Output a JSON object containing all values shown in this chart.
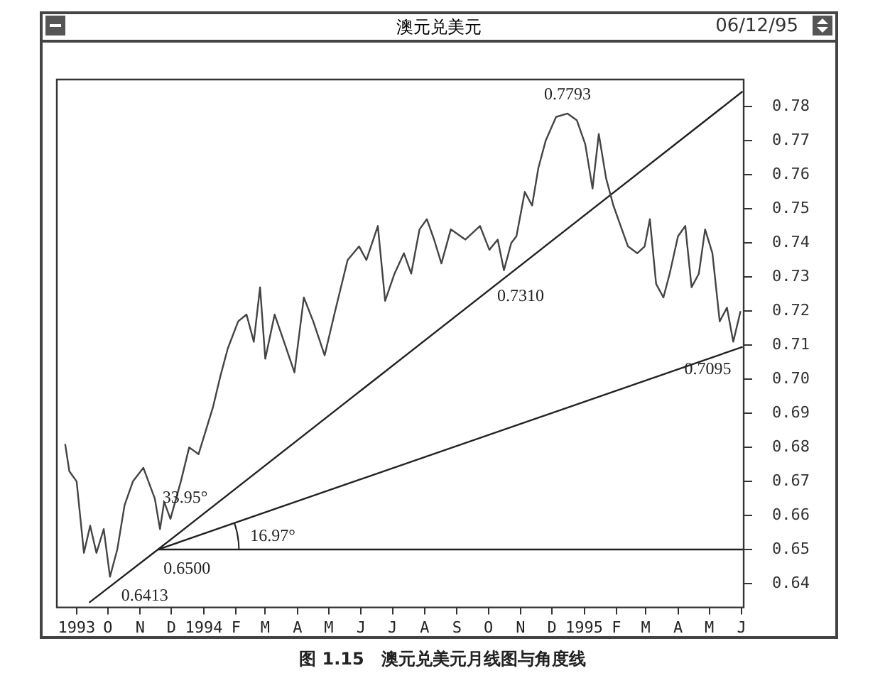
{
  "chart_data": {
    "type": "line",
    "title": "澳元兑美元",
    "subtitle": "06/12/95",
    "x": [
      "1993-08-21",
      "1993-08-25",
      "1993-09-01",
      "1993-09-08",
      "1993-09-14",
      "1993-09-20",
      "1993-09-27",
      "1993-10-03",
      "1993-10-10",
      "1993-10-17",
      "1993-10-25",
      "1993-11-04",
      "1993-11-15",
      "1993-11-20",
      "1993-11-24",
      "1993-11-30",
      "1993-12-10",
      "1993-12-18",
      "1993-12-27",
      "1994-01-04",
      "1994-01-10",
      "1994-01-17",
      "1994-01-24",
      "1994-02-03",
      "1994-02-11",
      "1994-02-18",
      "1994-02-24",
      "1994-03-01",
      "1994-03-10",
      "1994-03-19",
      "1994-03-29",
      "1994-04-07",
      "1994-04-16",
      "1994-04-27",
      "1994-05-07",
      "1994-05-19",
      "1994-05-30",
      "1994-06-06",
      "1994-06-17",
      "1994-06-24",
      "1994-07-03",
      "1994-07-12",
      "1994-07-19",
      "1994-07-27",
      "1994-08-03",
      "1994-08-10",
      "1994-08-17",
      "1994-08-26",
      "1994-09-09",
      "1994-09-23",
      "1994-10-02",
      "1994-10-10",
      "1994-10-16",
      "1994-10-23",
      "1994-10-28",
      "1994-11-05",
      "1994-11-12",
      "1994-11-18",
      "1994-11-25",
      "1994-12-05",
      "1994-12-16",
      "1994-12-25",
      "1995-01-02",
      "1995-01-09",
      "1995-01-15",
      "1995-01-22",
      "1995-01-29",
      "1995-02-05",
      "1995-02-12",
      "1995-02-21",
      "1995-02-28",
      "1995-03-05",
      "1995-03-11",
      "1995-03-18",
      "1995-03-24",
      "1995-04-01",
      "1995-04-08",
      "1995-04-14",
      "1995-04-21",
      "1995-04-27",
      "1995-05-04",
      "1995-05-11",
      "1995-05-18",
      "1995-05-24",
      "1995-05-31"
    ],
    "series": [
      {
        "color": "#444444",
        "values": [
          0.681,
          0.673,
          0.67,
          0.649,
          0.657,
          0.649,
          0.656,
          0.642,
          0.65,
          0.663,
          0.67,
          0.674,
          0.665,
          0.656,
          0.664,
          0.659,
          0.67,
          0.68,
          0.678,
          0.686,
          0.692,
          0.701,
          0.709,
          0.717,
          0.719,
          0.711,
          0.727,
          0.706,
          0.719,
          0.711,
          0.702,
          0.724,
          0.717,
          0.707,
          0.72,
          0.735,
          0.739,
          0.735,
          0.745,
          0.723,
          0.731,
          0.737,
          0.731,
          0.744,
          0.747,
          0.741,
          0.734,
          0.744,
          0.741,
          0.745,
          0.738,
          0.741,
          0.732,
          0.74,
          0.742,
          0.755,
          0.751,
          0.762,
          0.77,
          0.777,
          0.778,
          0.776,
          0.769,
          0.756,
          0.772,
          0.759,
          0.751,
          0.745,
          0.739,
          0.737,
          0.739,
          0.747,
          0.728,
          0.724,
          0.731,
          0.742,
          0.745,
          0.727,
          0.731,
          0.744,
          0.737,
          0.717,
          0.721,
          0.711,
          0.72
        ]
      },
      {
        "color": "#222222",
        "x": [
          "1993-09-13",
          "1993-11-18",
          "1995-06-02"
        ],
        "values": [
          0.6344,
          0.65,
          0.7845
        ]
      },
      {
        "color": "#222222",
        "x": [
          "1993-11-18",
          "1995-06-02"
        ],
        "values": [
          0.65,
          0.7095
        ]
      },
      {
        "color": "#222222",
        "x": [
          "1993-11-18",
          "1995-06-03"
        ],
        "values": [
          0.65,
          0.65
        ]
      }
    ],
    "xlim": [
      "1993-08-13",
      "1995-06-03"
    ],
    "xticks": [
      {
        "value": "1993-09-01",
        "label": "1993"
      },
      {
        "value": "1993-10-01",
        "label": "O"
      },
      {
        "value": "1993-11-01",
        "label": "N"
      },
      {
        "value": "1993-12-01",
        "label": "D"
      },
      {
        "value": "1994-01-01",
        "label": "1994"
      },
      {
        "value": "1994-02-01",
        "label": "F"
      },
      {
        "value": "1994-03-01",
        "label": "M"
      },
      {
        "value": "1994-04-01",
        "label": "A"
      },
      {
        "value": "1994-05-01",
        "label": "M"
      },
      {
        "value": "1994-06-01",
        "label": "J"
      },
      {
        "value": "1994-07-01",
        "label": "J"
      },
      {
        "value": "1994-08-01",
        "label": "A"
      },
      {
        "value": "1994-09-01",
        "label": "S"
      },
      {
        "value": "1994-10-01",
        "label": "O"
      },
      {
        "value": "1994-11-01",
        "label": "N"
      },
      {
        "value": "1994-12-01",
        "label": "D"
      },
      {
        "value": "1995-01-01",
        "label": "1995"
      },
      {
        "value": "1995-02-01",
        "label": "F"
      },
      {
        "value": "1995-03-01",
        "label": "M"
      },
      {
        "value": "1995-04-01",
        "label": "A"
      },
      {
        "value": "1995-05-01",
        "label": "M"
      },
      {
        "value": "1995-06-01",
        "label": "J"
      }
    ],
    "ylim": [
      0.633,
      0.788
    ],
    "yticks": [
      0.64,
      0.65,
      0.66,
      0.67,
      0.68,
      0.69,
      {
        "value": 0.7,
        "label": "0.70"
      },
      0.71,
      0.72,
      0.73,
      0.74,
      0.75,
      0.76,
      0.77,
      0.78
    ],
    "annotations": [
      {
        "text": "0.7793",
        "x": "1994-12-16",
        "y": 0.7793
      },
      {
        "text": "0.7310",
        "x": "1994-11-01",
        "y": 0.731
      },
      {
        "text": "0.7095",
        "x": "1995-06-02",
        "y": 0.7095
      },
      {
        "text": "0.6500",
        "x": "1993-11-18",
        "y": 0.65
      },
      {
        "text": "0.6413",
        "x": "1993-10-03",
        "y": 0.6413
      },
      "33.95°",
      "16.97°",
      "图 1.15　澳元兑美元月线图与角度线"
    ],
    "grid": false,
    "legend": false,
    "marker": "none",
    "line_style": "solid"
  }
}
